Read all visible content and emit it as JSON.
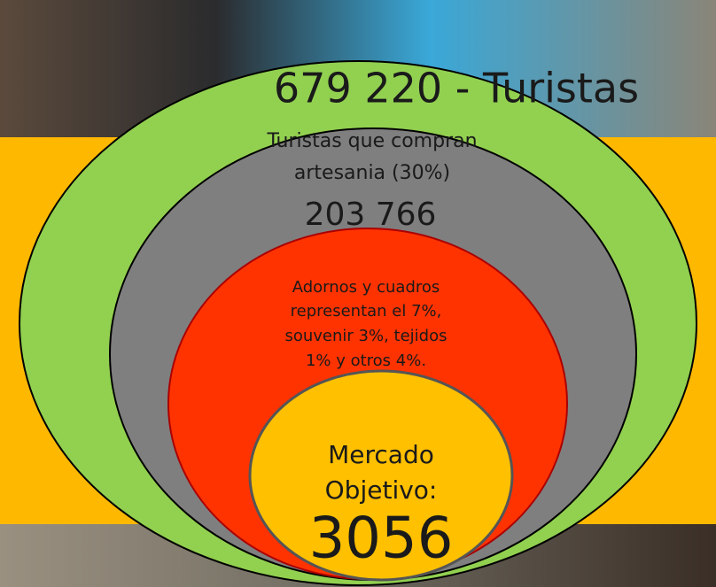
{
  "title": "679 220 - Turistas",
  "levels": [
    {
      "lines": [
        "Turistas que compran",
        "artesania  (30%)"
      ],
      "figure": "203 766"
    },
    {
      "lines": [
        "Adornos y cuadros",
        "representan el 7%,",
        "souvenir 3%, tejidos",
        "1% y otros 4%."
      ]
    },
    {
      "lines": [
        "Mercado",
        "Objetivo:"
      ],
      "figure": "3056"
    }
  ]
}
